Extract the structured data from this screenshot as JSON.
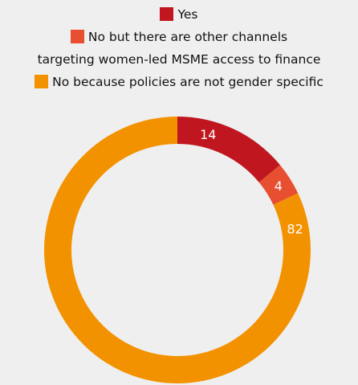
{
  "chart_data": {
    "type": "pie",
    "donut": true,
    "legend_position": "top",
    "categories": [
      "Yes",
      "No but there are other channels targeting women-led MSME access to finance",
      "No because policies are not gender specific"
    ],
    "values": [
      14,
      4,
      82
    ],
    "colors": [
      "#c0161f",
      "#e84e30",
      "#f39200"
    ],
    "legend_lines": [
      {
        "text": "Yes",
        "swatch": 0
      },
      {
        "text": "No but there are other channels",
        "swatch": 1
      },
      {
        "text": "targeting women-led MSME access to finance",
        "swatch": null
      },
      {
        "text": "No because policies are not gender specific",
        "swatch": 2
      }
    ],
    "data_labels": [
      "14",
      "4",
      "82"
    ]
  }
}
